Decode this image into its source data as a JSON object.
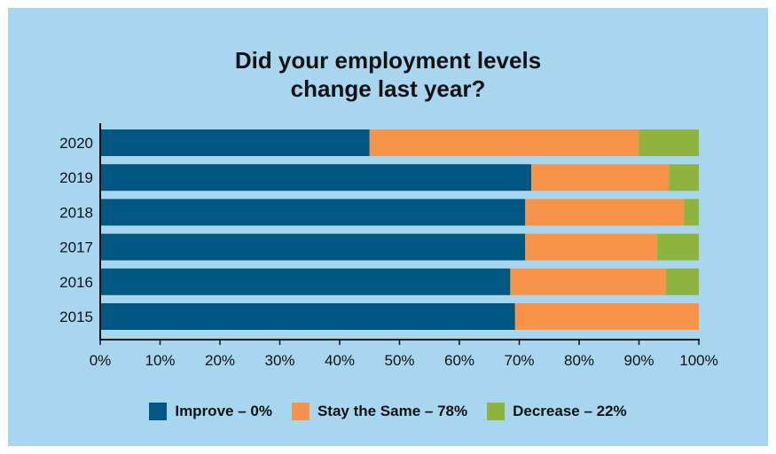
{
  "colors": {
    "background": "#a9d6ef",
    "improve": "#005782",
    "same": "#f79449",
    "decrease": "#8db43d"
  },
  "title_line1": "Did your employment levels",
  "title_line2": "change last year?",
  "legend": [
    {
      "label": "Improve – 0%",
      "color": "#005782"
    },
    {
      "label": "Stay the Same – 78%",
      "color": "#f79449"
    },
    {
      "label": "Decrease – 22%",
      "color": "#8db43d"
    }
  ],
  "chart_data": {
    "type": "bar",
    "orientation": "horizontal",
    "stacked": true,
    "title": "Did your employment levels change last year?",
    "categories": [
      "2020",
      "2019",
      "2018",
      "2017",
      "2016",
      "2015"
    ],
    "series": [
      {
        "name": "Improve – 0%",
        "color": "#005782",
        "values": [
          45,
          72,
          71,
          71,
          68.5,
          69.3
        ]
      },
      {
        "name": "Stay the Same – 78%",
        "color": "#f79449",
        "values": [
          45,
          23,
          26.5,
          22,
          26,
          30.7
        ]
      },
      {
        "name": "Decrease – 22%",
        "color": "#8db43d",
        "values": [
          10,
          5,
          2.5,
          7,
          5.5,
          0
        ]
      }
    ],
    "x_ticks": [
      "0%",
      "10%",
      "20%",
      "30%",
      "40%",
      "50%",
      "60%",
      "70%",
      "80%",
      "90%",
      "100%"
    ],
    "xlim": [
      0,
      100
    ],
    "grid": false,
    "legend_position": "bottom"
  }
}
